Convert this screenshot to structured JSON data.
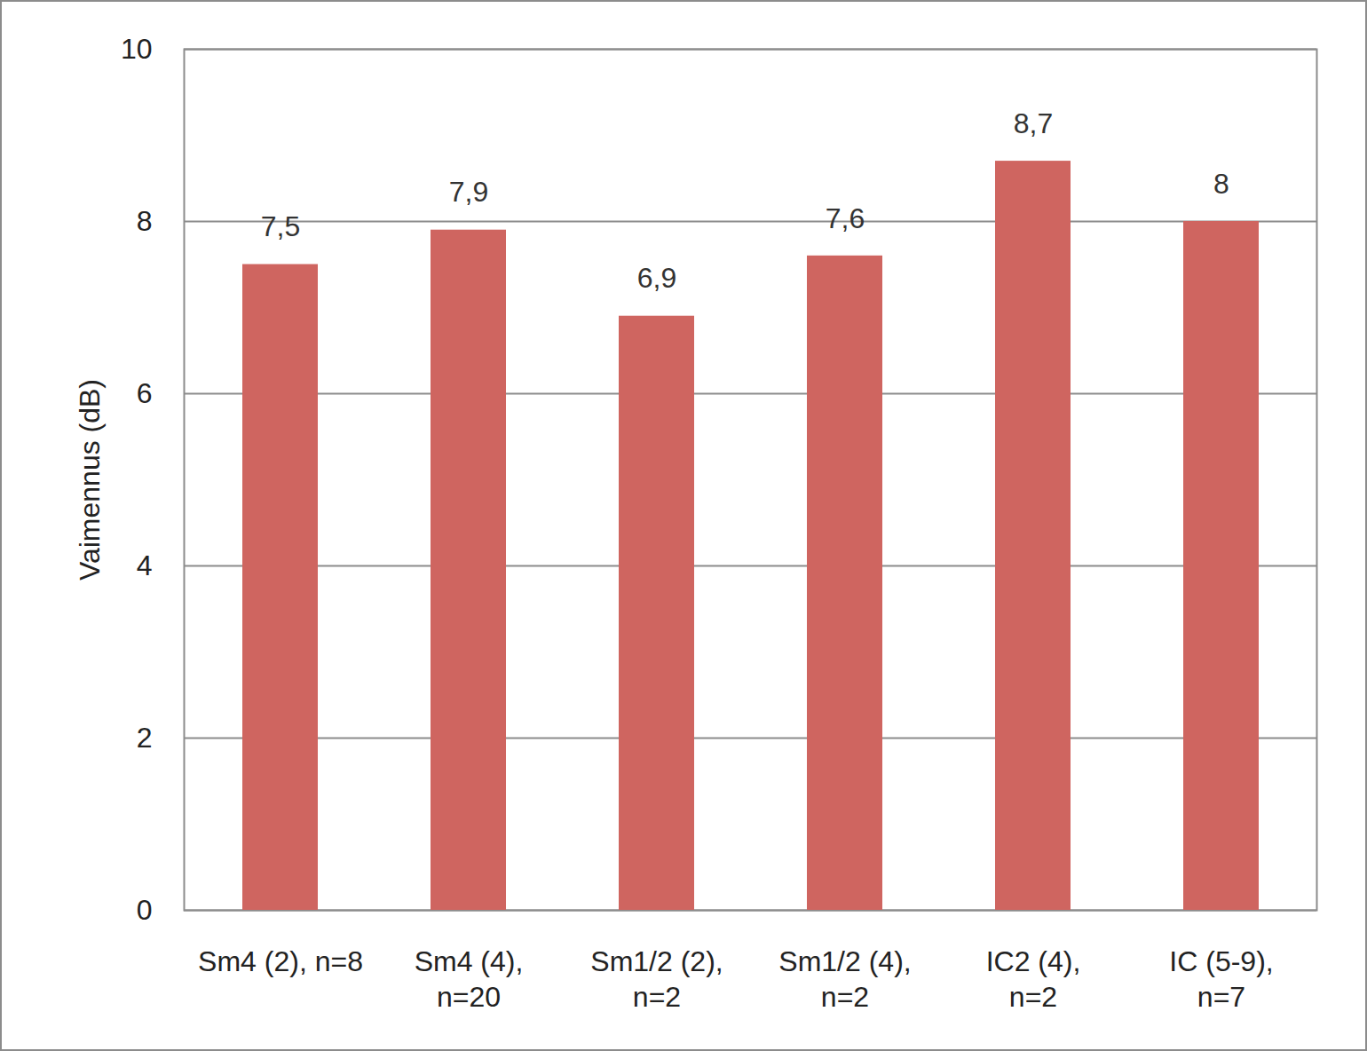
{
  "chart_data": {
    "type": "bar",
    "y_label": "Vaimennus (dB)",
    "categories": [
      "Sm4 (2), n=8",
      "Sm4 (4),\nn=20",
      "Sm1/2 (2),\nn=2",
      "Sm1/2 (4),\nn=2",
      "IC2 (4),\nn=2",
      "IC (5-9),\nn=7"
    ],
    "values": [
      7.5,
      7.9,
      6.9,
      7.6,
      8.7,
      8
    ],
    "value_labels": [
      "7,5",
      "7,9",
      "6,9",
      "7,6",
      "8,7",
      "8"
    ],
    "color": "#cf6560",
    "ylim": [
      0,
      10
    ],
    "yticks": [
      0,
      2,
      4,
      6,
      8,
      10
    ],
    "grid": true,
    "data_labels": true
  }
}
